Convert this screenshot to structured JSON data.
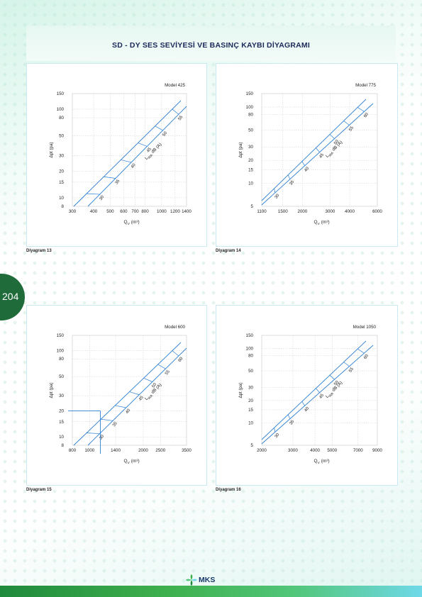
{
  "page": {
    "title": "SD - DY SES SEVİYESİ VE BASINÇ KAYBI DİYAGRAMI",
    "page_number": "204",
    "logo_text": "MKS",
    "colors": {
      "line": "#2b7fd1",
      "grid": "#cfcfcf",
      "accent": "#1f6b3a"
    }
  },
  "chart_data": [
    {
      "type": "line",
      "caption": "Diyagram 13",
      "model": "Model 425",
      "xlabel_main": "Q",
      "xlabel_sub": "V",
      "xlabel_unit": "(m³)",
      "ylabel": "Δpt (pa)",
      "lwa_label": "L",
      "lwa_sub": "WA",
      "lwa_unit": "dB (A)",
      "x_ticks": [
        "300",
        "400",
        "500",
        "600",
        "700",
        "800",
        "1000",
        "1200",
        "1400"
      ],
      "y_ticks": [
        "150",
        "100",
        "80",
        "50",
        "30",
        "20",
        "15",
        "10",
        "8"
      ],
      "sound_levels": [
        "30",
        "35",
        "40",
        "45",
        "50",
        "55"
      ],
      "xlim": [
        300,
        1400
      ],
      "ylim": [
        8,
        150
      ]
    },
    {
      "type": "line",
      "caption": "Diyagram 14",
      "model": "Model 775",
      "xlabel_main": "Q",
      "xlabel_sub": "V",
      "xlabel_unit": "(m³)",
      "ylabel": "Δpt (pa)",
      "lwa_label": "L",
      "lwa_sub": "WA",
      "lwa_unit": "dB (A)",
      "x_ticks": [
        "1100",
        "1500",
        "2000",
        "3000",
        "4000",
        "6000"
      ],
      "y_ticks": [
        "150",
        "100",
        "80",
        "50",
        "30",
        "20",
        "15",
        "10",
        "5"
      ],
      "sound_levels": [
        "30",
        "35",
        "40",
        "45",
        "50",
        "55",
        "60"
      ],
      "xlim": [
        1100,
        6000
      ],
      "ylim": [
        5,
        150
      ]
    },
    {
      "type": "line",
      "caption": "Diyagram 15",
      "model": "Model 600",
      "xlabel_main": "Q",
      "xlabel_sub": "V",
      "xlabel_unit": "(m³)",
      "ylabel": "Δpt (pa)",
      "lwa_label": "L",
      "lwa_sub": "WA",
      "lwa_unit": "dB (A)",
      "x_ticks": [
        "800",
        "1000",
        "1400",
        "2000",
        "2500",
        "3500"
      ],
      "y_ticks": [
        "150",
        "100",
        "80",
        "50",
        "30",
        "20",
        "15",
        "10",
        "8"
      ],
      "sound_levels": [
        "30",
        "35",
        "40",
        "45",
        "50",
        "55",
        "60"
      ],
      "xlim": [
        800,
        3500
      ],
      "ylim": [
        8,
        150
      ],
      "example": {
        "q": 1150,
        "dp": 20
      }
    },
    {
      "type": "line",
      "caption": "Diyagram 16",
      "model": "Model 1050",
      "xlabel_main": "Q",
      "xlabel_sub": "V",
      "xlabel_unit": "(m³)",
      "ylabel": "Δpt (pa)",
      "lwa_label": "L",
      "lwa_sub": "WA",
      "lwa_unit": "dB (A)",
      "x_ticks": [
        "2000",
        "3000",
        "4000",
        "5000",
        "7000",
        "9000"
      ],
      "y_ticks": [
        "150",
        "100",
        "80",
        "50",
        "30",
        "20",
        "15",
        "10",
        "5"
      ],
      "sound_levels": [
        "30",
        "35",
        "40",
        "45",
        "50",
        "55",
        "60"
      ],
      "xlim": [
        2000,
        9000
      ],
      "ylim": [
        5,
        150
      ]
    }
  ]
}
